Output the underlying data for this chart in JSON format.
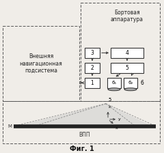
{
  "title": "Фиг. 1",
  "board_label": "Бортовая\nаппаратура",
  "external_label": "Внешняя\nнавигационная\nподсистема",
  "vpp_label": "ВПП",
  "bg_color": "#f0ede8",
  "figsize": [
    2.4,
    2.24
  ],
  "dpi": 100
}
